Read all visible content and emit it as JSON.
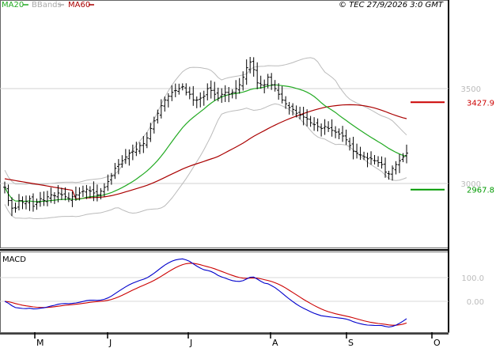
{
  "header": {
    "legend": [
      {
        "label": "MA20",
        "color": "#22aa22"
      },
      {
        "label": "BBands",
        "color": "#aaaaaa"
      },
      {
        "label": "MA60",
        "color": "#aa0000"
      }
    ],
    "copyright": "© TEC 27/9/2026 3:0 GMT"
  },
  "chart_data": [
    {
      "type": "ohlc",
      "title": "",
      "y_tick_labels": [
        "3500",
        "3000"
      ],
      "y_ticks": [
        3500,
        3000
      ],
      "x_tick_labels": [
        "M",
        "J",
        "J",
        "A",
        "S",
        "O"
      ],
      "price_range": [
        2800,
        3700
      ],
      "markers": [
        {
          "value": 3427.9,
          "label": "3427.9",
          "color": "#cc0000"
        },
        {
          "value": 2967.8,
          "label": "2967.8",
          "color": "#009900"
        }
      ],
      "series": [
        {
          "name": "MA20",
          "color": "#22aa22"
        },
        {
          "name": "BBands",
          "color": "#aaaaaa"
        },
        {
          "name": "MA60",
          "color": "#aa0000"
        }
      ],
      "ohlc_close": [
        2980,
        2910,
        2870,
        2870,
        2910,
        2900,
        2905,
        2920,
        2880,
        2900,
        2920,
        2910,
        2930,
        2940,
        2935,
        2950,
        2940,
        2930,
        2920,
        2930,
        2940,
        2950,
        2960,
        2970,
        2960,
        2950,
        2940,
        2960,
        2980,
        3010,
        3040,
        3080,
        3100,
        3120,
        3140,
        3160,
        3170,
        3180,
        3200,
        3210,
        3240,
        3290,
        3330,
        3370,
        3410,
        3440,
        3460,
        3480,
        3490,
        3500,
        3510,
        3480,
        3470,
        3440,
        3440,
        3450,
        3460,
        3500,
        3490,
        3470,
        3450,
        3470,
        3480,
        3470,
        3480,
        3500,
        3520,
        3560,
        3610,
        3640,
        3600,
        3530,
        3520,
        3520,
        3560,
        3520,
        3500,
        3470,
        3440,
        3420,
        3400,
        3390,
        3370,
        3360,
        3350,
        3340,
        3320,
        3310,
        3300,
        3290,
        3300,
        3290,
        3280,
        3270,
        3260,
        3250,
        3230,
        3200,
        3170,
        3160,
        3150,
        3140,
        3130,
        3130,
        3120,
        3110,
        3100,
        3060,
        3050,
        3080,
        3100,
        3120,
        3140,
        3160
      ]
    },
    {
      "type": "line",
      "title": "MACD",
      "y_tick_labels": [
        "100.0",
        "0.00"
      ],
      "y_ticks": [
        100,
        0
      ],
      "series": [
        {
          "name": "MACD",
          "color": "#0000cc"
        },
        {
          "name": "Signal",
          "color": "#cc0000"
        }
      ]
    }
  ]
}
